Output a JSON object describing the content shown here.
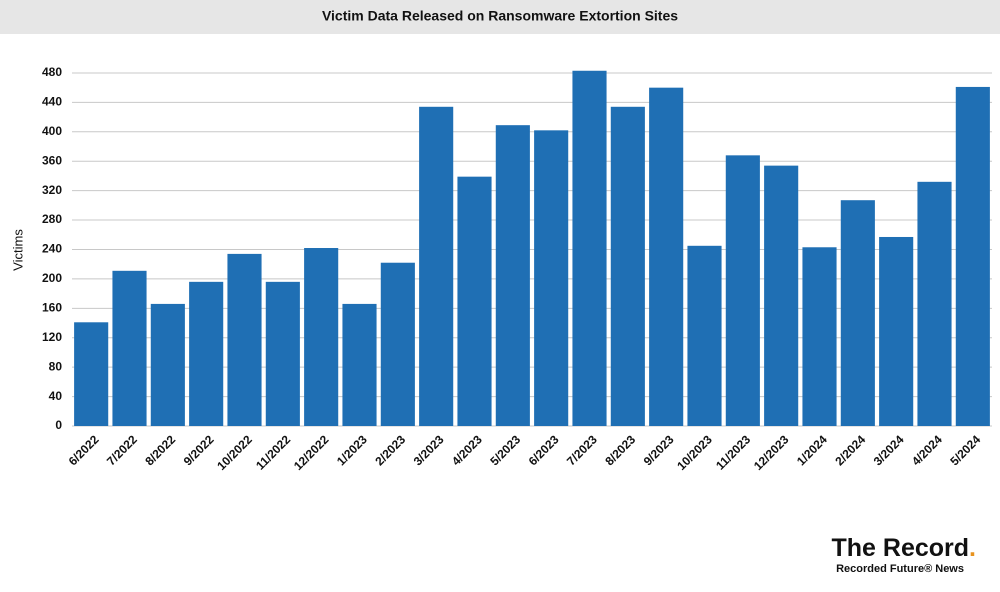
{
  "chart_data": {
    "type": "bar",
    "title": "Victim Data Released on Ransomware Extortion Sites",
    "y_label": "Victims",
    "categories": [
      "6/2022",
      "7/2022",
      "8/2022",
      "9/2022",
      "10/2022",
      "11/2022",
      "12/2022",
      "1/2023",
      "2/2023",
      "3/2023",
      "4/2023",
      "5/2023",
      "6/2023",
      "7/2023",
      "8/2023",
      "9/2023",
      "10/2023",
      "11/2023",
      "12/2023",
      "1/2024",
      "2/2024",
      "3/2024",
      "4/2024",
      "5/2024"
    ],
    "values": [
      141,
      211,
      166,
      196,
      234,
      196,
      242,
      166,
      222,
      434,
      339,
      409,
      402,
      483,
      434,
      460,
      245,
      368,
      354,
      243,
      307,
      257,
      332,
      461
    ],
    "color": "#1f6fb4",
    "ylim": [
      0,
      490
    ],
    "yticks": [
      0,
      40,
      80,
      120,
      160,
      200,
      240,
      280,
      320,
      360,
      400,
      440,
      480
    ],
    "grid": true,
    "brand": "The Record",
    "brand_mark": ".",
    "brand_sub": "Recorded Future® News"
  }
}
